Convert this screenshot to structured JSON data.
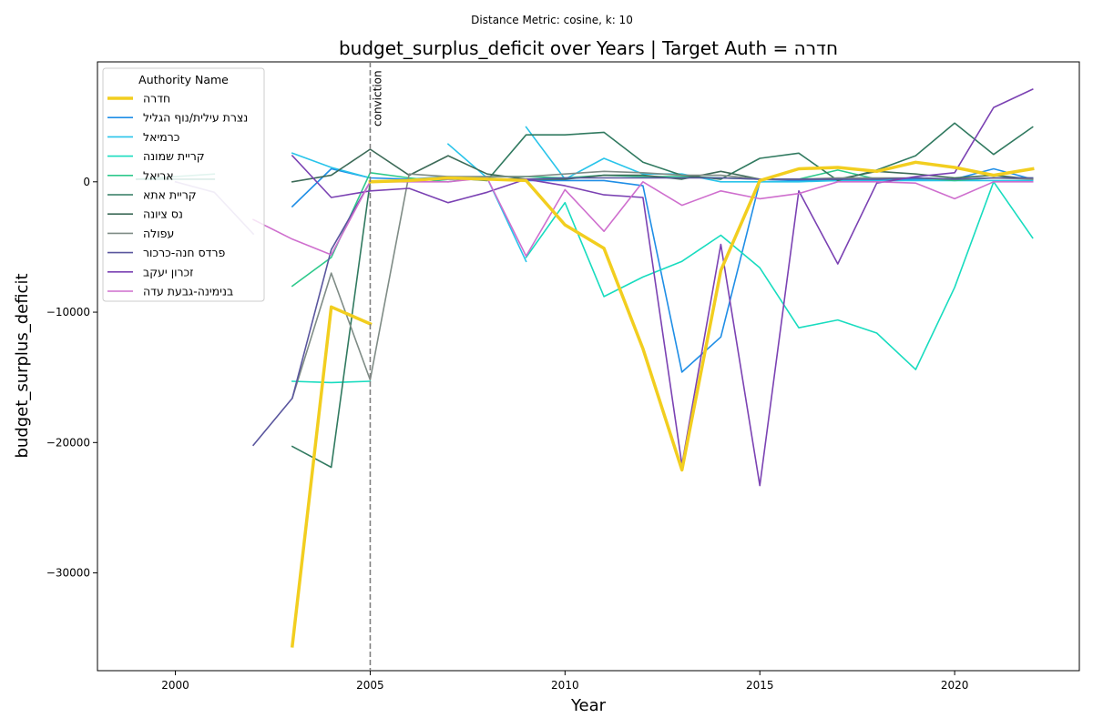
{
  "chart_data": {
    "type": "line",
    "suptitle": "Distance Metric: cosine, k: 10",
    "title": "budget_surplus_deficit over Years | Target Auth = חדרה",
    "xlabel": "Year",
    "ylabel": "budget_surplus_deficit",
    "xlim": [
      1998,
      2023.2
    ],
    "ylim": [
      -37500,
      9200
    ],
    "xticks": [
      2000,
      2005,
      2010,
      2015,
      2020
    ],
    "yticks": [
      -30000,
      -20000,
      -10000,
      0
    ],
    "ytick_labels": [
      "−30000",
      "−20000",
      "−10000",
      "0"
    ],
    "grid": false,
    "legend": {
      "title": "Authority Name",
      "placement": "upper-left"
    },
    "vline": {
      "x": 2005,
      "label": "conviction",
      "color": "#808080"
    },
    "series": [
      {
        "name": "חדרה",
        "color": "#f2ce1f",
        "width": 3.5,
        "target": true,
        "points": [
          [
            2003,
            -35600
          ],
          [
            2004,
            -9600
          ],
          [
            2005,
            -10900
          ],
          [
            null,
            null
          ],
          [
            2005,
            0
          ],
          [
            2006,
            100
          ],
          [
            2007,
            300
          ],
          [
            2008,
            200
          ],
          [
            2009,
            100
          ],
          [
            2010,
            -3300
          ],
          [
            2011,
            -5100
          ],
          [
            2012,
            -12800
          ],
          [
            2013,
            -22100
          ],
          [
            2014,
            -6800
          ],
          [
            2015,
            100
          ],
          [
            2016,
            1000
          ],
          [
            2017,
            1100
          ],
          [
            2018,
            800
          ],
          [
            2019,
            1500
          ],
          [
            2020,
            1100
          ],
          [
            2021,
            500
          ],
          [
            2022,
            1000
          ]
        ]
      },
      {
        "name": "נצרת עילית/נוף הגליל",
        "color": "#1f8ee6",
        "width": 1.6,
        "points": [
          [
            2003,
            -1900
          ],
          [
            2004,
            1000
          ],
          [
            2005,
            300
          ],
          [
            2006,
            200
          ],
          [
            2007,
            400
          ],
          [
            2008,
            300
          ],
          [
            2009,
            100
          ],
          [
            2010,
            100
          ],
          [
            2011,
            100
          ],
          [
            2012,
            -300
          ],
          [
            2013,
            -14600
          ],
          [
            2014,
            -11900
          ],
          [
            2015,
            0
          ],
          [
            2016,
            100
          ],
          [
            2017,
            100
          ],
          [
            2018,
            100
          ],
          [
            2019,
            200
          ],
          [
            2020,
            200
          ],
          [
            2021,
            1000
          ],
          [
            2022,
            200
          ]
        ]
      },
      {
        "name": "כרמיאל",
        "color": "#29c4ea",
        "width": 1.6,
        "points": [
          [
            2003,
            2200
          ],
          [
            2004,
            1100
          ],
          [
            2005,
            300
          ],
          [
            null,
            null
          ],
          [
            2007,
            2900
          ],
          [
            2008,
            300
          ],
          [
            2009,
            -6100
          ],
          [
            null,
            null
          ],
          [
            2009,
            4200
          ],
          [
            2010,
            200
          ],
          [
            2011,
            1800
          ],
          [
            2012,
            600
          ],
          [
            2013,
            600
          ],
          [
            2014,
            0
          ],
          [
            2015,
            0
          ],
          [
            2016,
            0
          ],
          [
            2017,
            100
          ],
          [
            2018,
            100
          ],
          [
            2019,
            100
          ],
          [
            2020,
            100
          ],
          [
            2021,
            100
          ],
          [
            2022,
            100
          ]
        ]
      },
      {
        "name": "קריית שמונה",
        "color": "#18dcbf",
        "width": 1.6,
        "points": [
          [
            2003,
            -15300
          ],
          [
            2004,
            -15400
          ],
          [
            2005,
            -15300
          ],
          [
            null,
            null
          ],
          [
            2009,
            -5800
          ],
          [
            2010,
            -1600
          ],
          [
            2011,
            -8800
          ],
          [
            2012,
            -7300
          ],
          [
            2013,
            -6100
          ],
          [
            2014,
            -4100
          ],
          [
            2015,
            -6600
          ],
          [
            2016,
            -11200
          ],
          [
            2017,
            -10600
          ],
          [
            2018,
            -11600
          ],
          [
            2019,
            -14400
          ],
          [
            2020,
            -8100
          ],
          [
            2021,
            0
          ],
          [
            2022,
            -4300
          ]
        ]
      },
      {
        "name": "אריאל",
        "color": "#2ec98c",
        "width": 1.6,
        "points": [
          [
            2003,
            -8000
          ],
          [
            2004,
            -5800
          ],
          [
            2005,
            700
          ],
          [
            2006,
            300
          ],
          [
            2007,
            0
          ],
          [
            2008,
            400
          ],
          [
            2009,
            400
          ],
          [
            2010,
            300
          ],
          [
            2011,
            500
          ],
          [
            2012,
            400
          ],
          [
            2013,
            400
          ],
          [
            2014,
            300
          ],
          [
            2015,
            200
          ],
          [
            2016,
            200
          ],
          [
            2017,
            900
          ],
          [
            2018,
            200
          ],
          [
            2019,
            300
          ],
          [
            2020,
            100
          ],
          [
            2021,
            300
          ],
          [
            2022,
            300
          ]
        ]
      },
      {
        "name": "קריית אתא",
        "color": "#317a60",
        "width": 1.6,
        "points": [
          [
            2003,
            -20300
          ],
          [
            2004,
            -21900
          ],
          [
            2005,
            0
          ],
          [
            2006,
            100
          ],
          [
            2007,
            300
          ],
          [
            2008,
            100
          ],
          [
            2009,
            3600
          ],
          [
            2010,
            3600
          ],
          [
            2011,
            3800
          ],
          [
            2012,
            1500
          ],
          [
            2013,
            500
          ],
          [
            2014,
            200
          ],
          [
            2015,
            1800
          ],
          [
            2016,
            2200
          ],
          [
            2017,
            100
          ],
          [
            2018,
            900
          ],
          [
            2019,
            2000
          ],
          [
            2020,
            4500
          ],
          [
            2021,
            2100
          ],
          [
            2022,
            4200
          ]
        ]
      },
      {
        "name": "נס ציונה",
        "color": "#3d6b58",
        "width": 1.6,
        "points": [
          [
            2003,
            0
          ],
          [
            2004,
            500
          ],
          [
            2005,
            2500
          ],
          [
            2006,
            500
          ],
          [
            2007,
            2000
          ],
          [
            2008,
            600
          ],
          [
            2009,
            200
          ],
          [
            2010,
            200
          ],
          [
            2011,
            500
          ],
          [
            2012,
            500
          ],
          [
            2013,
            200
          ],
          [
            2014,
            800
          ],
          [
            2015,
            200
          ],
          [
            2016,
            200
          ],
          [
            2017,
            200
          ],
          [
            2018,
            800
          ],
          [
            2019,
            600
          ],
          [
            2020,
            300
          ],
          [
            2021,
            500
          ],
          [
            2022,
            200
          ]
        ]
      },
      {
        "name": "עפולה",
        "color": "#7f8c86",
        "width": 1.6,
        "points": [
          [
            2003,
            -16600
          ],
          [
            2004,
            -7000
          ],
          [
            2005,
            -15200
          ],
          [
            2006,
            600
          ],
          [
            2007,
            400
          ],
          [
            2008,
            400
          ],
          [
            2009,
            400
          ],
          [
            2010,
            600
          ],
          [
            2011,
            800
          ],
          [
            2012,
            700
          ],
          [
            2013,
            500
          ],
          [
            2014,
            500
          ],
          [
            2015,
            200
          ],
          [
            2016,
            200
          ],
          [
            2017,
            300
          ],
          [
            2018,
            300
          ],
          [
            2019,
            300
          ],
          [
            2020,
            200
          ],
          [
            2021,
            300
          ],
          [
            2022,
            200
          ]
        ]
      },
      {
        "name": "פרדס חנה-כרכור",
        "color": "#5a569e",
        "width": 1.6,
        "points": [
          [
            2002,
            -20200
          ],
          [
            2003,
            -16600
          ],
          [
            2004,
            -5200
          ],
          [
            2005,
            0
          ],
          [
            2006,
            100
          ],
          [
            2007,
            200
          ],
          [
            2008,
            200
          ],
          [
            2009,
            200
          ],
          [
            2010,
            300
          ],
          [
            2011,
            300
          ],
          [
            2012,
            300
          ],
          [
            2013,
            300
          ],
          [
            2014,
            300
          ],
          [
            2015,
            200
          ],
          [
            2016,
            200
          ],
          [
            2017,
            200
          ],
          [
            2018,
            200
          ],
          [
            2019,
            300
          ],
          [
            2020,
            200
          ],
          [
            2021,
            300
          ],
          [
            2022,
            300
          ]
        ]
      },
      {
        "name": "זכרון יעקב",
        "color": "#7b42b3",
        "width": 1.6,
        "points": [
          [
            2003,
            2000
          ],
          [
            2004,
            -1200
          ],
          [
            2005,
            -700
          ],
          [
            2006,
            -500
          ],
          [
            2007,
            -1600
          ],
          [
            2008,
            -800
          ],
          [
            2009,
            200
          ],
          [
            2010,
            -300
          ],
          [
            2011,
            -1000
          ],
          [
            2012,
            -1200
          ],
          [
            2013,
            -21700
          ],
          [
            2014,
            -4800
          ],
          [
            2015,
            -23300
          ],
          [
            2016,
            -700
          ],
          [
            2017,
            -6300
          ],
          [
            2018,
            -100
          ],
          [
            2019,
            400
          ],
          [
            2020,
            700
          ],
          [
            2021,
            5700
          ],
          [
            2022,
            7100
          ]
        ]
      },
      {
        "name": "בנימינה-גבעת עדה",
        "color": "#cf6fce",
        "width": 1.6,
        "points": [
          [
            2002,
            -2900
          ],
          [
            2003,
            -4400
          ],
          [
            2004,
            -5600
          ],
          [
            2005,
            0
          ],
          [
            2006,
            0
          ],
          [
            2007,
            0
          ],
          [
            2008,
            300
          ],
          [
            2009,
            -5700
          ],
          [
            2010,
            -600
          ],
          [
            2011,
            -3800
          ],
          [
            2012,
            0
          ],
          [
            2013,
            -1800
          ],
          [
            2014,
            -700
          ],
          [
            2015,
            -1300
          ],
          [
            2016,
            -900
          ],
          [
            2017,
            0
          ],
          [
            2018,
            0
          ],
          [
            2019,
            -100
          ],
          [
            2020,
            -1300
          ],
          [
            2021,
            0
          ],
          [
            2022,
            0
          ]
        ]
      },
      {
        "name": "",
        "color": "#6ec8b0",
        "width": 1.6,
        "points": [
          [
            1999,
            200
          ],
          [
            2000,
            400
          ],
          [
            2001,
            600
          ]
        ]
      },
      {
        "name": "",
        "color": "#4fa08a",
        "width": 1.6,
        "points": [
          [
            1999,
            200
          ],
          [
            2000,
            200
          ],
          [
            2001,
            200
          ]
        ]
      },
      {
        "name": "",
        "color": "#b8a6d8",
        "width": 1.6,
        "points": [
          [
            2000,
            0
          ],
          [
            2001,
            -800
          ],
          [
            2002,
            -4000
          ]
        ]
      }
    ]
  }
}
